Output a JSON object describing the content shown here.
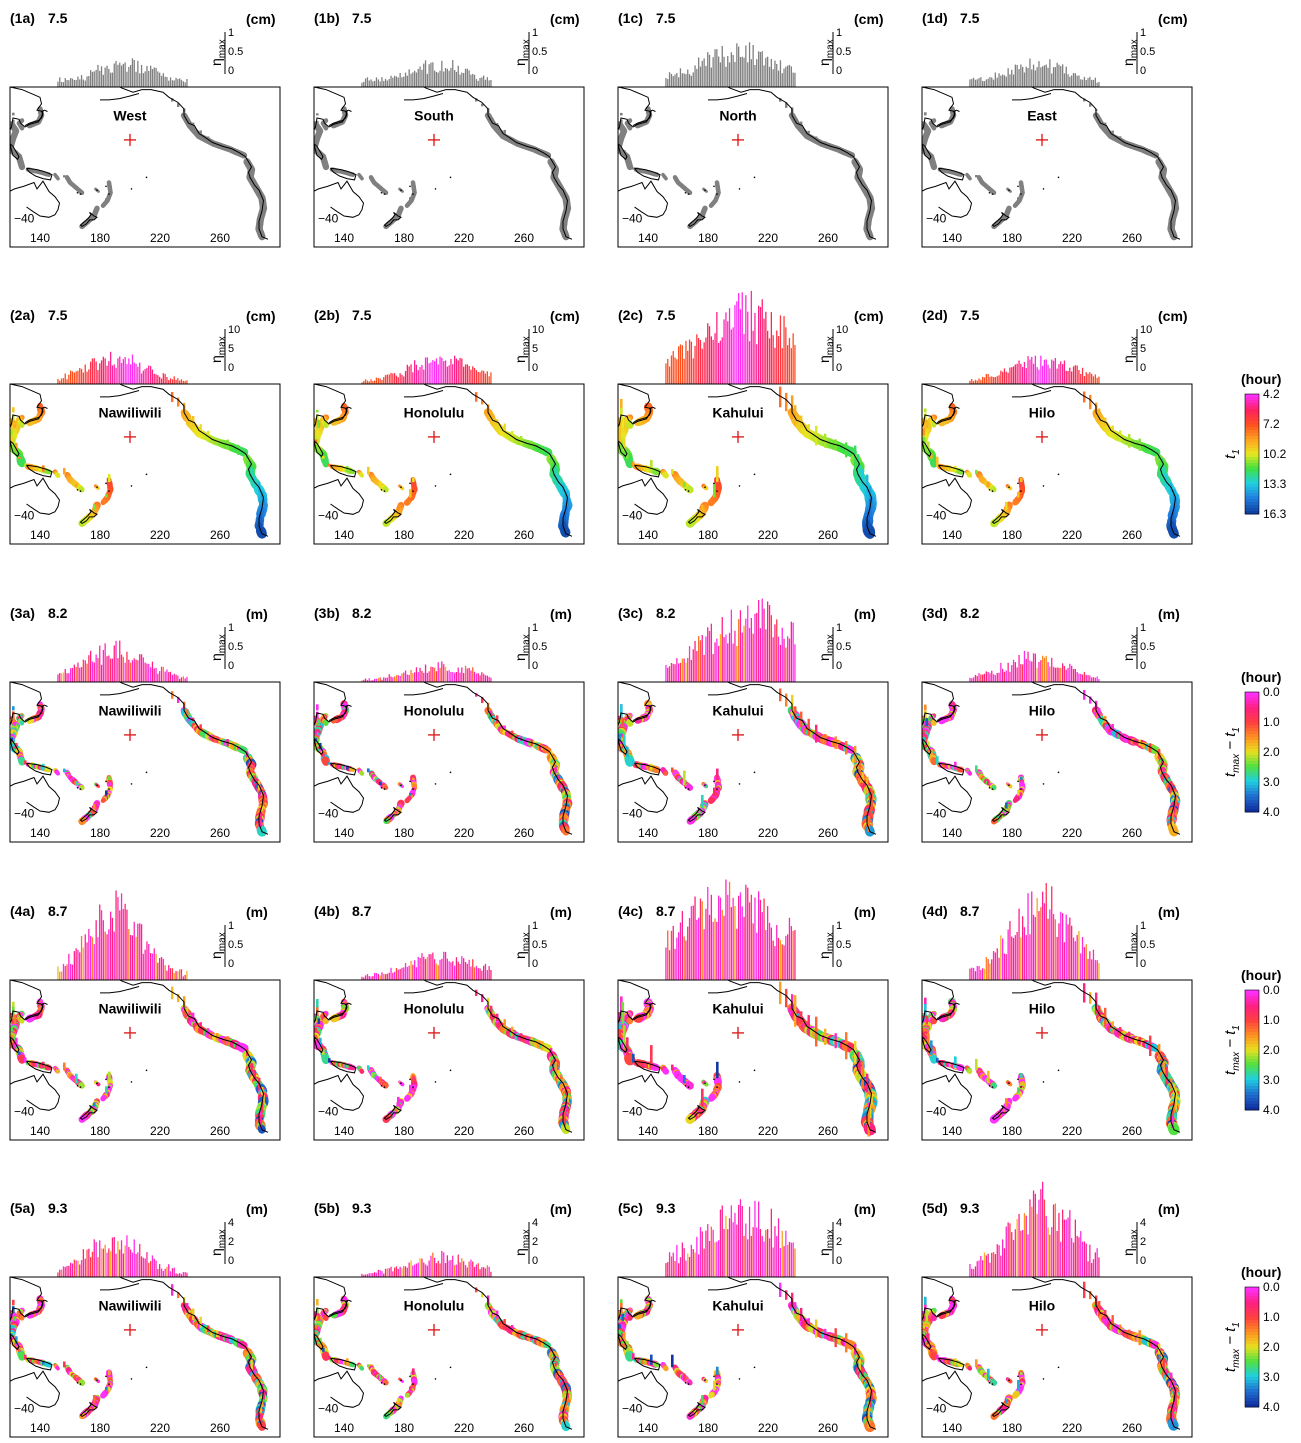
{
  "figure": {
    "columns": [
      "a",
      "b",
      "c",
      "d"
    ],
    "rows": [
      {
        "row_id": "1",
        "magnitude": "7.5",
        "unit": "(cm)",
        "scale_ticks": [
          "1",
          "0.5",
          "0"
        ],
        "coloring": "gray",
        "colorbar": null,
        "panels": [
          {
            "label": "(1a)",
            "site": "West",
            "amp": 0.3,
            "peak_lon": 196,
            "spread": 28,
            "east": 0.1
          },
          {
            "label": "(1b)",
            "site": "South",
            "amp": 0.3,
            "peak_lon": 200,
            "spread": 30,
            "east": 0.1
          },
          {
            "label": "(1c)",
            "site": "North",
            "amp": 0.45,
            "peak_lon": 200,
            "spread": 38,
            "east": 0.12
          },
          {
            "label": "(1d)",
            "site": "East",
            "amp": 0.3,
            "peak_lon": 198,
            "spread": 30,
            "east": 0.1
          }
        ]
      },
      {
        "row_id": "2",
        "magnitude": "7.5",
        "unit": "(cm)",
        "scale_ticks": [
          "10",
          "5",
          "0"
        ],
        "coloring": "arrival",
        "colorbar": {
          "unit": "(hour)",
          "label_main": "t",
          "label_sub": "1",
          "ticks": [
            "4.2",
            "7.2",
            "10.2",
            "13.3",
            "16.3"
          ],
          "scheme": "arrival"
        },
        "panels": [
          {
            "label": "(2a)",
            "site": "Nawiliwili",
            "amp": 0.35,
            "peak_lon": 190,
            "spread": 28,
            "east": 0.25
          },
          {
            "label": "(2b)",
            "site": "Honolulu",
            "amp": 0.3,
            "peak_lon": 205,
            "spread": 32,
            "east": 0.25
          },
          {
            "label": "(2c)",
            "site": "Kahului",
            "amp": 0.9,
            "peak_lon": 205,
            "spread": 45,
            "east": 0.55
          },
          {
            "label": "(2d)",
            "site": "Hilo",
            "amp": 0.3,
            "peak_lon": 200,
            "spread": 32,
            "east": 0.3
          }
        ]
      },
      {
        "row_id": "3",
        "magnitude": "8.2",
        "unit": "(m)",
        "scale_ticks": [
          "1",
          "0.5",
          "0"
        ],
        "coloring": "delay",
        "colorbar": {
          "unit": "(hour)",
          "label_main": "t",
          "label_sub": "max",
          "label_tail": " − t",
          "label_tail_sub": "1",
          "ticks": [
            "0.0",
            "1.0",
            "2.0",
            "3.0",
            "4.0"
          ],
          "scheme": "delay"
        },
        "panels": [
          {
            "label": "(3a)",
            "site": "Nawiliwili",
            "amp": 0.4,
            "peak_lon": 190,
            "spread": 30,
            "east": 0.2
          },
          {
            "label": "(3b)",
            "site": "Honolulu",
            "amp": 0.2,
            "peak_lon": 205,
            "spread": 32,
            "east": 0.2
          },
          {
            "label": "(3c)",
            "site": "Kahului",
            "amp": 0.8,
            "peak_lon": 210,
            "spread": 45,
            "east": 0.45
          },
          {
            "label": "(3d)",
            "site": "Hilo",
            "amp": 0.3,
            "peak_lon": 195,
            "spread": 30,
            "east": 0.25
          }
        ]
      },
      {
        "row_id": "4",
        "magnitude": "8.7",
        "unit": "(m)",
        "scale_ticks": [
          "1",
          "0.5",
          "0"
        ],
        "coloring": "delay",
        "colorbar": {
          "unit": "(hour)",
          "label_main": "t",
          "label_sub": "max",
          "label_tail": " − t",
          "label_tail_sub": "1",
          "ticks": [
            "0.0",
            "1.0",
            "2.0",
            "3.0",
            "4.0"
          ],
          "scheme": "delay"
        },
        "panels": [
          {
            "label": "(4a)",
            "site": "Nawiliwili",
            "amp": 0.85,
            "peak_lon": 190,
            "spread": 26,
            "east": 0.3
          },
          {
            "label": "(4b)",
            "site": "Honolulu",
            "amp": 0.3,
            "peak_lon": 205,
            "spread": 34,
            "east": 0.3
          },
          {
            "label": "(4c)",
            "site": "Kahului",
            "amp": 0.95,
            "peak_lon": 195,
            "spread": 55,
            "east": 0.7
          },
          {
            "label": "(4d)",
            "site": "Hilo",
            "amp": 0.9,
            "peak_lon": 200,
            "spread": 30,
            "east": 0.45
          }
        ]
      },
      {
        "row_id": "5",
        "magnitude": "9.3",
        "unit": "(m)",
        "scale_ticks": [
          "4",
          "2",
          "0"
        ],
        "coloring": "delay",
        "colorbar": {
          "unit": "(hour)",
          "label_main": "t",
          "label_sub": "max",
          "label_tail": " − t",
          "label_tail_sub": "1",
          "ticks": [
            "0.0",
            "1.0",
            "2.0",
            "3.0",
            "4.0"
          ],
          "scheme": "delay"
        },
        "panels": [
          {
            "label": "(5a)",
            "site": "Nawiliwili",
            "amp": 0.45,
            "peak_lon": 190,
            "spread": 28,
            "east": 0.25
          },
          {
            "label": "(5b)",
            "site": "Honolulu",
            "amp": 0.25,
            "peak_lon": 205,
            "spread": 34,
            "east": 0.2
          },
          {
            "label": "(5c)",
            "site": "Kahului",
            "amp": 0.75,
            "peak_lon": 205,
            "spread": 45,
            "east": 0.4
          },
          {
            "label": "(5d)",
            "site": "Hilo",
            "amp": 0.9,
            "peak_lon": 200,
            "spread": 30,
            "east": 0.35
          }
        ]
      }
    ],
    "axis_labels": {
      "x_ticks": [
        "140",
        "180",
        "220",
        "260"
      ],
      "y_tick": "−40",
      "eta_symbol": "η",
      "eta_sub": "max"
    },
    "colors": {
      "gray": "#808080",
      "source_marker": "#e02020",
      "frame": "#000000",
      "arrival_scale": [
        "#ff30ff",
        "#ff2060",
        "#ff5020",
        "#ffa020",
        "#e8e820",
        "#40e040",
        "#20d0e0",
        "#2080e0",
        "#1040a0"
      ],
      "delay_scale": [
        "#ff30ff",
        "#ff2080",
        "#ff4040",
        "#ff9020",
        "#e8e020",
        "#50e040",
        "#20d0e0",
        "#2070d0",
        "#1030a0"
      ]
    }
  },
  "chart_data": {
    "type": "bar",
    "title": "",
    "xlabel": "",
    "x_ticks": [
      140,
      180,
      220,
      260
    ],
    "ylabel": "ηmax",
    "description_units": {
      "row1": "cm",
      "row2": "cm",
      "row3": "m",
      "row4": "m",
      "row5": "m"
    },
    "magnitudes": [
      7.5,
      7.5,
      8.2,
      8.7,
      9.3
    ],
    "scale_ranges": [
      [
        0,
        1
      ],
      [
        0,
        10
      ],
      [
        0,
        1
      ],
      [
        0,
        1
      ],
      [
        0,
        4
      ]
    ],
    "sites": [
      "West",
      "South",
      "North",
      "East",
      "Nawiliwili",
      "Honolulu",
      "Kahului",
      "Hilo"
    ],
    "colorbars": [
      {
        "label": "t1 (hour)",
        "ticks": [
          4.2,
          7.2,
          10.2,
          13.3,
          16.3
        ]
      },
      {
        "label": "tmax − t1 (hour)",
        "ticks": [
          0.0,
          1.0,
          2.0,
          3.0,
          4.0
        ]
      }
    ]
  }
}
